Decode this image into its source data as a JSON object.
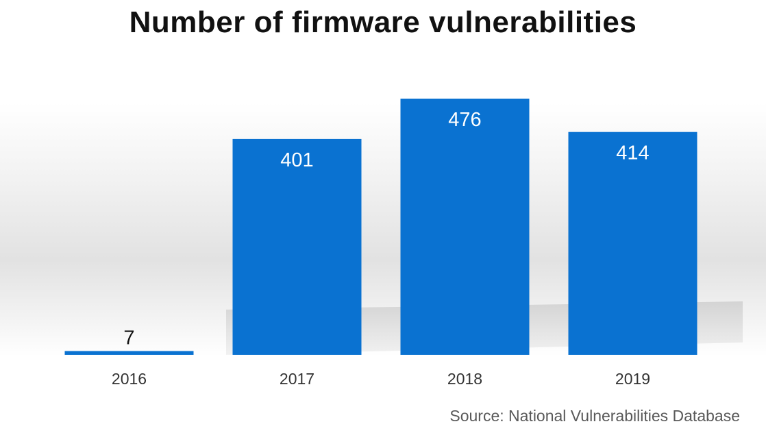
{
  "colors": {
    "bar": "#0a72d1",
    "bar_label": "#ffffff",
    "small_value_label": "#111111",
    "tick_label": "#333333",
    "shadow": "#bdbdbd"
  },
  "chart_data": {
    "type": "bar",
    "title": "Number of firmware vulnerabilities",
    "categories": [
      "2016",
      "2017",
      "2018",
      "2019"
    ],
    "values": [
      7,
      401,
      476,
      414
    ],
    "value_labels": [
      "7",
      "401",
      "476",
      "414"
    ],
    "xlabel": "",
    "ylabel": "",
    "ylim": [
      0,
      476
    ],
    "grid": false,
    "legend": "none",
    "y_axis_shown": false,
    "data_labels": "inside-top"
  },
  "footer": {
    "source": "Source: National Vulnerabilities Database"
  }
}
